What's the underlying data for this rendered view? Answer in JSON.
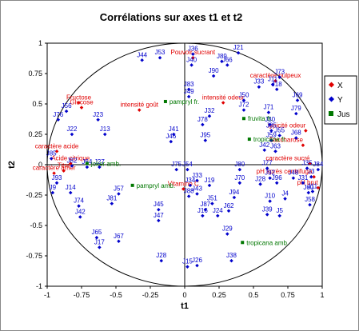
{
  "chart_data": {
    "type": "scatter",
    "title": "Corrélations sur axes t1 et t2",
    "xlabel": "t1",
    "ylabel": "t2",
    "xlim": [
      -1,
      1
    ],
    "ylim": [
      -1,
      1
    ],
    "xticks": [
      "-1",
      "-0.75",
      "-0.5",
      "-0.25",
      "0",
      "0.25",
      "0.5",
      "0.75",
      "1"
    ],
    "yticks": [
      "1",
      "0.75",
      "0.5",
      "0.25",
      "0",
      "-0.25",
      "-0.5",
      "-0.75",
      "-1"
    ],
    "grid": false,
    "legend_position": "right",
    "colors": {
      "X": "#e00000",
      "Y": "#0000cc",
      "Jus": "#007700"
    },
    "series": [
      {
        "name": "X",
        "color": "#e00000",
        "points": [
          {
            "label": "Pouvoir sucrant",
            "x": 0.06,
            "y": 0.88
          },
          {
            "label": "caractère pulpeux",
            "x": 0.66,
            "y": 0.69
          },
          {
            "label": "intensité odeur",
            "x": 0.28,
            "y": 0.51
          },
          {
            "label": "intensité goût",
            "x": -0.33,
            "y": 0.45
          },
          {
            "label": "Fructose",
            "x": -0.77,
            "y": 0.51
          },
          {
            "label": "Glucose",
            "x": -0.75,
            "y": 0.47
          },
          {
            "label": "caractère acide",
            "x": -0.93,
            "y": 0.11
          },
          {
            "label": "Acide citrique",
            "x": -0.83,
            "y": 0.01
          },
          {
            "label": "Titre",
            "x": -0.88,
            "y": -0.05
          },
          {
            "label": "caractère amer",
            "x": -0.95,
            "y": -0.07
          },
          {
            "label": "Vitamine C",
            "x": -0.01,
            "y": -0.2
          },
          {
            "label": "typicité odeur",
            "x": 0.88,
            "y": 0.28
          },
          {
            "label": "Saccharose",
            "x": 0.86,
            "y": 0.16
          },
          {
            "label": "caractère sucré",
            "x": 0.91,
            "y": 0.01
          },
          {
            "label": "pH après centrifuga.",
            "x": 0.94,
            "y": -0.1
          },
          {
            "label": "pH brut",
            "x": 0.97,
            "y": -0.19
          }
        ]
      },
      {
        "name": "Y",
        "color": "#0000cc",
        "points": [
          {
            "label": "J36",
            "x": 0.06,
            "y": 0.91
          },
          {
            "label": "J21",
            "x": 0.39,
            "y": 0.92
          },
          {
            "label": "J89",
            "x": 0.27,
            "y": 0.85
          },
          {
            "label": "J66",
            "x": 0.31,
            "y": 0.82
          },
          {
            "label": "J44",
            "x": -0.31,
            "y": 0.86
          },
          {
            "label": "J53",
            "x": -0.18,
            "y": 0.88
          },
          {
            "label": "J40",
            "x": 0.05,
            "y": 0.82
          },
          {
            "label": "J90",
            "x": 0.21,
            "y": 0.73
          },
          {
            "label": "J73",
            "x": 0.69,
            "y": 0.72
          },
          {
            "label": "J11",
            "x": 0.64,
            "y": 0.66
          },
          {
            "label": "J18",
            "x": 0.67,
            "y": 0.62
          },
          {
            "label": "J33",
            "x": 0.54,
            "y": 0.64
          },
          {
            "label": "J83",
            "x": 0.03,
            "y": 0.62
          },
          {
            "label": "J49",
            "x": 0.03,
            "y": 0.56
          },
          {
            "label": "J50",
            "x": 0.43,
            "y": 0.53
          },
          {
            "label": "J69",
            "x": 0.82,
            "y": 0.53
          },
          {
            "label": "J72",
            "x": 0.43,
            "y": 0.45
          },
          {
            "label": "J71",
            "x": 0.61,
            "y": 0.43
          },
          {
            "label": "J79",
            "x": 0.81,
            "y": 0.42
          },
          {
            "label": "J32",
            "x": 0.18,
            "y": 0.4
          },
          {
            "label": "J56",
            "x": -0.86,
            "y": 0.44
          },
          {
            "label": "J76",
            "x": -0.92,
            "y": 0.37
          },
          {
            "label": "J23",
            "x": -0.63,
            "y": 0.37
          },
          {
            "label": "J78",
            "x": 0.13,
            "y": 0.33
          },
          {
            "label": "J30",
            "x": 0.62,
            "y": 0.33
          },
          {
            "label": "J85",
            "x": 0.63,
            "y": 0.28
          },
          {
            "label": "J13",
            "x": -0.58,
            "y": 0.25
          },
          {
            "label": "J22",
            "x": -0.82,
            "y": 0.25
          },
          {
            "label": "J41",
            "x": -0.08,
            "y": 0.25
          },
          {
            "label": "J55",
            "x": 0.69,
            "y": 0.24
          },
          {
            "label": "J68",
            "x": 0.81,
            "y": 0.22
          },
          {
            "label": "J95",
            "x": 0.15,
            "y": 0.2
          },
          {
            "label": "J59",
            "x": 0.63,
            "y": 0.2
          },
          {
            "label": "J46",
            "x": -0.1,
            "y": 0.19
          },
          {
            "label": "J42",
            "x": 0.58,
            "y": 0.12
          },
          {
            "label": "J63",
            "x": 0.66,
            "y": 0.11
          },
          {
            "label": "J85",
            "x": -0.97,
            "y": 0.05
          },
          {
            "label": "J82",
            "x": -0.82,
            "y": -0.01
          },
          {
            "label": "J64",
            "x": -0.71,
            "y": -0.02
          },
          {
            "label": "J27",
            "x": -0.62,
            "y": -0.02
          },
          {
            "label": "J75",
            "x": -0.06,
            "y": -0.04
          },
          {
            "label": "J54",
            "x": 0.02,
            "y": -0.04
          },
          {
            "label": "J80",
            "x": 0.4,
            "y": -0.04
          },
          {
            "label": "J77",
            "x": 0.6,
            "y": -0.03
          },
          {
            "label": "J35",
            "x": 0.89,
            "y": -0.03
          },
          {
            "label": "J84",
            "x": 0.97,
            "y": -0.04
          },
          {
            "label": "J3",
            "x": 0.92,
            "y": -0.1
          },
          {
            "label": "J92",
            "x": 0.62,
            "y": -0.11
          },
          {
            "label": "J48",
            "x": 0.79,
            "y": -0.11
          },
          {
            "label": "J33",
            "x": 0.09,
            "y": -0.13
          },
          {
            "label": "J70",
            "x": 0.4,
            "y": -0.15
          },
          {
            "label": "J96",
            "x": 0.67,
            "y": -0.15
          },
          {
            "label": "J31",
            "x": 0.86,
            "y": -0.15
          },
          {
            "label": "J93",
            "x": -0.93,
            "y": -0.15
          },
          {
            "label": "J34",
            "x": 0.04,
            "y": -0.17
          },
          {
            "label": "J19",
            "x": 0.18,
            "y": -0.17
          },
          {
            "label": "J28",
            "x": 0.55,
            "y": -0.16
          },
          {
            "label": "J60",
            "x": 0.9,
            "y": -0.23
          },
          {
            "label": "J9",
            "x": -0.96,
            "y": -0.23
          },
          {
            "label": "J14",
            "x": -0.83,
            "y": -0.23
          },
          {
            "label": "J11",
            "x": 0.93,
            "y": -0.22
          },
          {
            "label": "J57",
            "x": -0.48,
            "y": -0.24
          },
          {
            "label": "J43",
            "x": 0.09,
            "y": -0.24
          },
          {
            "label": "J88",
            "x": 0.03,
            "y": -0.26
          },
          {
            "label": "J94",
            "x": 0.36,
            "y": -0.27
          },
          {
            "label": "J4",
            "x": 0.73,
            "y": -0.28
          },
          {
            "label": "J10",
            "x": 0.62,
            "y": -0.3
          },
          {
            "label": "J51",
            "x": 0.2,
            "y": -0.32
          },
          {
            "label": "J81",
            "x": -0.53,
            "y": -0.32
          },
          {
            "label": "J74",
            "x": -0.77,
            "y": -0.34
          },
          {
            "label": "J58",
            "x": 0.91,
            "y": -0.33
          },
          {
            "label": "J87",
            "x": 0.15,
            "y": -0.37
          },
          {
            "label": "J62",
            "x": 0.32,
            "y": -0.38
          },
          {
            "label": "J45",
            "x": -0.19,
            "y": -0.37
          },
          {
            "label": "J39",
            "x": 0.6,
            "y": -0.41
          },
          {
            "label": "J5",
            "x": 0.69,
            "y": -0.42
          },
          {
            "label": "J42",
            "x": -0.76,
            "y": -0.43
          },
          {
            "label": "J16",
            "x": 0.13,
            "y": -0.42
          },
          {
            "label": "J24",
            "x": 0.24,
            "y": -0.42
          },
          {
            "label": "J47",
            "x": -0.19,
            "y": -0.46
          },
          {
            "label": "J29",
            "x": 0.31,
            "y": -0.57
          },
          {
            "label": "J65",
            "x": -0.64,
            "y": -0.6
          },
          {
            "label": "J67",
            "x": -0.48,
            "y": -0.63
          },
          {
            "label": "J17",
            "x": -0.62,
            "y": -0.68
          },
          {
            "label": "J28",
            "x": -0.17,
            "y": -0.79
          },
          {
            "label": "J38",
            "x": 0.34,
            "y": -0.79
          },
          {
            "label": "J15",
            "x": 0.02,
            "y": -0.84
          },
          {
            "label": "J26",
            "x": 0.09,
            "y": -0.83
          }
        ]
      },
      {
        "name": "Jus",
        "color": "#007700",
        "points": [
          {
            "label": "pampryl fr.",
            "x": -0.14,
            "y": 0.52
          },
          {
            "label": "fruvita fr.",
            "x": 0.43,
            "y": 0.38
          },
          {
            "label": "tropicana fr.",
            "x": 0.47,
            "y": 0.21
          },
          {
            "label": "joker amb.",
            "x": -0.71,
            "y": 0.01
          },
          {
            "label": "pampryl amb.",
            "x": -0.38,
            "y": -0.17
          },
          {
            "label": "tropicana amb.",
            "x": 0.42,
            "y": -0.64
          }
        ]
      }
    ]
  }
}
